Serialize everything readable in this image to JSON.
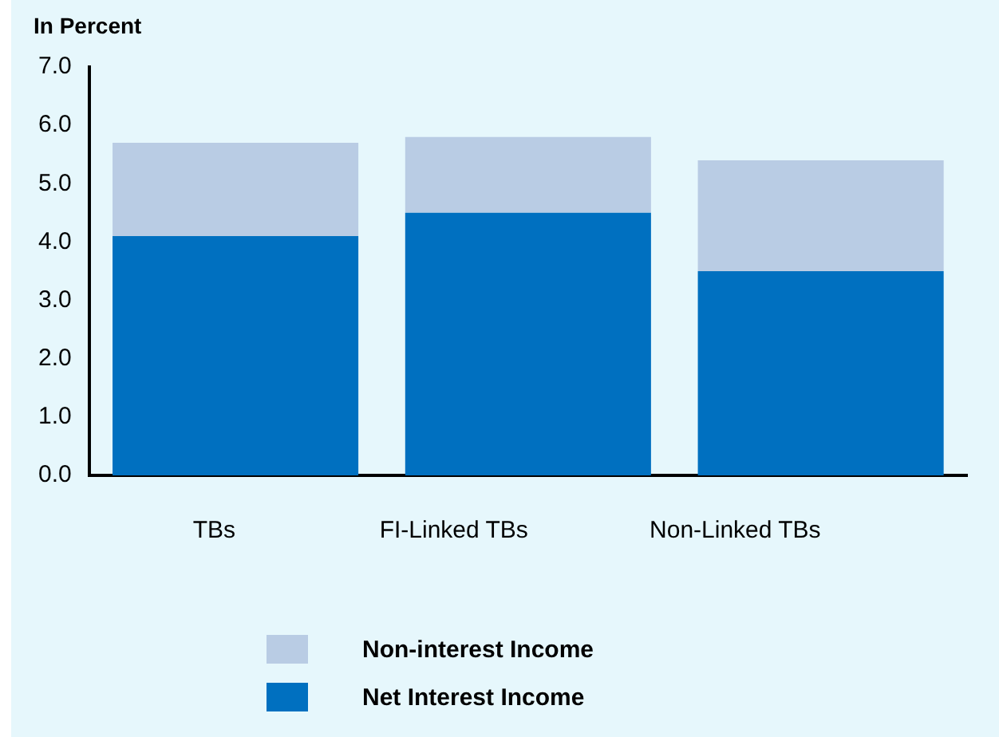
{
  "chart_data": {
    "type": "bar",
    "ylabel": "In Percent",
    "categories": [
      "TBs",
      "FI-Linked TBs",
      "Non-Linked TBs"
    ],
    "stacked": true,
    "series": [
      {
        "name": "Net Interest Income",
        "color": "#0070c0",
        "values": [
          4.1,
          4.5,
          3.5
        ]
      },
      {
        "name": "Non-interest Income",
        "color": "#b9cce4",
        "values": [
          1.6,
          1.3,
          1.9
        ]
      }
    ],
    "ylim": [
      0,
      7
    ],
    "yticks": [
      {
        "value": 0,
        "label": "0.0"
      },
      {
        "value": 1,
        "label": "1.0"
      },
      {
        "value": 2,
        "label": "2.0"
      },
      {
        "value": 3,
        "label": "3.0"
      },
      {
        "value": 4,
        "label": "4.0"
      },
      {
        "value": 5,
        "label": "5.0"
      },
      {
        "value": 6,
        "label": "6.0"
      },
      {
        "value": 7,
        "label": "7.0"
      }
    ],
    "grid": false,
    "legend": "bottom"
  }
}
